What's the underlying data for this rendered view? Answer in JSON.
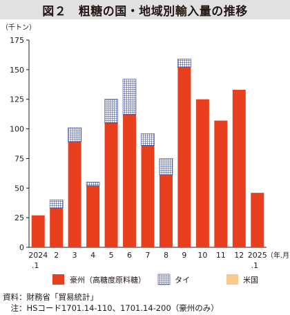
{
  "title": "図２　粗糖の国・地域別輸入量の推移",
  "chart_data": {
    "type": "bar",
    "stacked": true,
    "unit_label": "（千トン）",
    "x_unit_label": "（年.月）",
    "categories": [
      {
        "main": "2024",
        "sub": ".1"
      },
      {
        "main": "2",
        "sub": ""
      },
      {
        "main": "3",
        "sub": ""
      },
      {
        "main": "4",
        "sub": ""
      },
      {
        "main": "5",
        "sub": ""
      },
      {
        "main": "6",
        "sub": ""
      },
      {
        "main": "7",
        "sub": ""
      },
      {
        "main": "8",
        "sub": ""
      },
      {
        "main": "9",
        "sub": ""
      },
      {
        "main": "10",
        "sub": ""
      },
      {
        "main": "11",
        "sub": ""
      },
      {
        "main": "12",
        "sub": ""
      },
      {
        "main": "2025",
        "sub": ".1"
      }
    ],
    "series": [
      {
        "name": "豪州（高糖度原料糖）",
        "color": "#e8401e",
        "pattern": "solid",
        "values": [
          27,
          33,
          89,
          52,
          105,
          112,
          86,
          61,
          152,
          125,
          107,
          133,
          46
        ]
      },
      {
        "name": "タイ",
        "color": "#3345a5",
        "pattern": "grid",
        "values": [
          0,
          7,
          12,
          3,
          20,
          30,
          10,
          14,
          7,
          0,
          0,
          0,
          0
        ]
      },
      {
        "name": "米国",
        "color": "#f9c88c",
        "pattern": "solid",
        "values": [
          0,
          0,
          0,
          0,
          0,
          0,
          0,
          0,
          0,
          0,
          0,
          0,
          0
        ]
      }
    ],
    "ylim": [
      0,
      175
    ],
    "yticks": [
      0,
      25,
      50,
      75,
      100,
      125,
      150,
      175
    ],
    "grid": false,
    "legend_position": "bottom"
  },
  "notes": {
    "source": "資料：財務省「貿易統計」",
    "note": "　注：HSコード1701.14-110、1701.14-200（豪州のみ）"
  }
}
